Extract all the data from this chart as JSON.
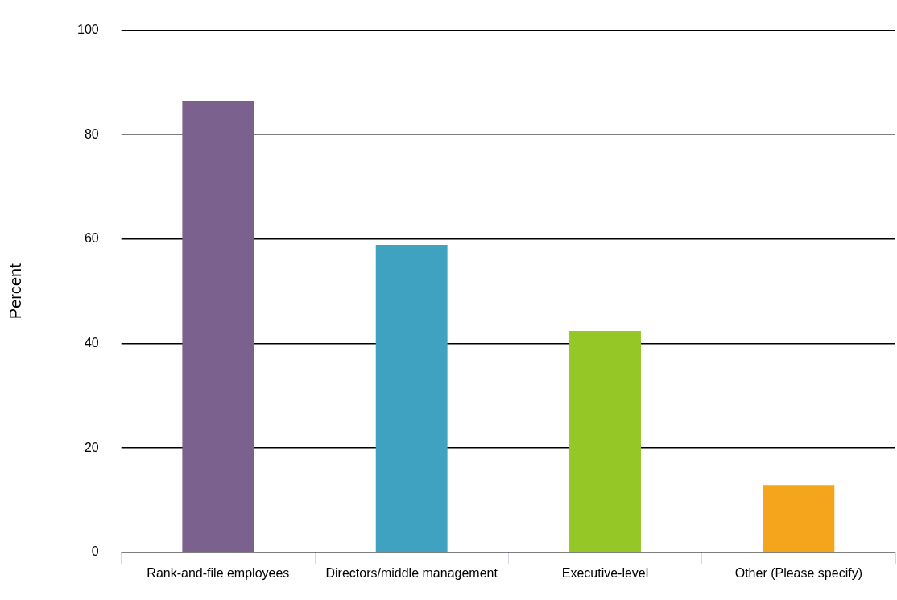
{
  "chart_data": {
    "type": "bar",
    "ylabel": "Percent",
    "categories": [
      "Rank-and-file employees",
      "Directors/middle management",
      "Executive-level",
      "Other (Please specify)"
    ],
    "values": [
      86.5,
      58.9,
      42.4,
      12.9
    ],
    "colors": [
      "#7b618e",
      "#40a2c1",
      "#95c727",
      "#f5a51b"
    ],
    "ylim": [
      0,
      100
    ],
    "yticks": [
      0,
      20,
      40,
      60,
      80,
      100
    ],
    "grid": "y"
  }
}
